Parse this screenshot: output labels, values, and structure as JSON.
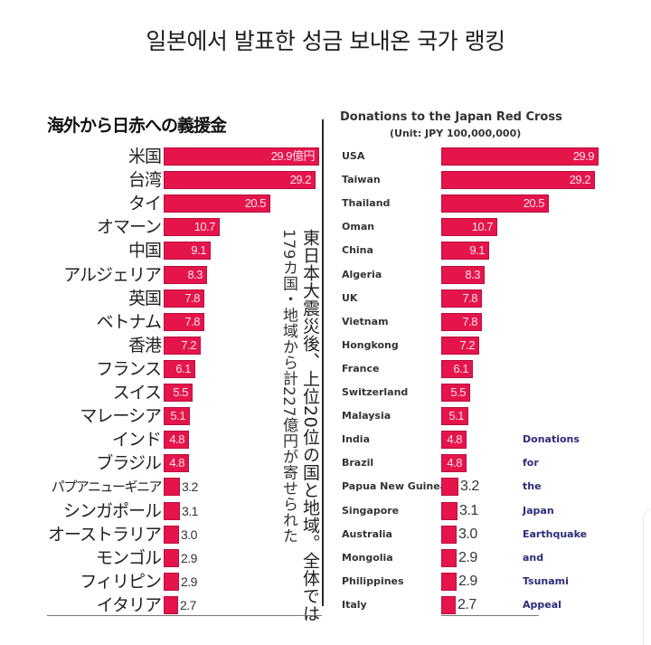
{
  "page": {
    "title": "일본에서 발표한 성금 보내온 국가 랭킹"
  },
  "japanese_chart": {
    "title": "海外から日赤への義援金",
    "unit_suffix": "億円",
    "vertical_note_main": "東日本大震災後、上位20位の国と地域。全体では",
    "vertical_note_sub": "179カ国・地域から計227億円が寄せられた"
  },
  "english_chart": {
    "title": "Donations to the Japan Red Cross",
    "unit": "(Unit: JPY 100,000,000)",
    "appeal_words": [
      "Donations",
      "for",
      "the",
      "Japan",
      "Earthquake",
      "and",
      "Tsunami",
      "Appeal"
    ]
  },
  "colors": {
    "bar": "#e5154c",
    "appeal_text": "#2b2b7a"
  },
  "chart_data": [
    {
      "type": "bar",
      "orientation": "horizontal",
      "title": "海外から日赤への義援金",
      "xlabel": "",
      "ylabel": "",
      "unit": "億円",
      "categories": [
        "米国",
        "台湾",
        "タイ",
        "オマーン",
        "中国",
        "アルジェリア",
        "英国",
        "ベトナム",
        "香港",
        "フランス",
        "スイス",
        "マレーシア",
        "インド",
        "ブラジル",
        "パプアニューギニア",
        "シンガポール",
        "オーストラリア",
        "モンゴル",
        "フィリピン",
        "イタリア"
      ],
      "values": [
        29.9,
        29.2,
        20.5,
        10.7,
        9.1,
        8.3,
        7.8,
        7.8,
        7.2,
        6.1,
        5.5,
        5.1,
        4.8,
        4.8,
        3.2,
        3.1,
        3.0,
        2.9,
        2.9,
        2.7
      ],
      "value_labels": [
        "29.9億円",
        "29.2",
        "20.5",
        "10.7",
        "9.1",
        "8.3",
        "7.8",
        "7.8",
        "7.2",
        "6.1",
        "5.5",
        "5.1",
        "4.8",
        "4.8",
        "3.2",
        "3.1",
        "3.0",
        "2.9",
        "2.9",
        "2.7"
      ],
      "annotation": "東日本大震災後、上位20位の国と地域。全体では179カ国・地域から計227億円が寄せられた",
      "grid": false,
      "legend": null
    },
    {
      "type": "bar",
      "orientation": "horizontal",
      "title": "Donations to the Japan Red Cross",
      "subtitle": "(Unit: JPY 100,000,000)",
      "xlabel": "",
      "ylabel": "",
      "categories": [
        "USA",
        "Taiwan",
        "Thailand",
        "Oman",
        "China",
        "Algeria",
        "UK",
        "Vietnam",
        "Hongkong",
        "France",
        "Switzerland",
        "Malaysia",
        "India",
        "Brazil",
        "Papua New Guinea",
        "Singapore",
        "Australia",
        "Mongolia",
        "Philippines",
        "Italy"
      ],
      "values": [
        29.9,
        29.2,
        20.5,
        10.7,
        9.1,
        8.3,
        7.8,
        7.8,
        7.2,
        6.1,
        5.5,
        5.1,
        4.8,
        4.8,
        3.2,
        3.1,
        3.0,
        2.9,
        2.9,
        2.7
      ],
      "annotation": "Donations for the Japan Earthquake and Tsunami Appeal",
      "grid": false,
      "legend": null
    }
  ]
}
